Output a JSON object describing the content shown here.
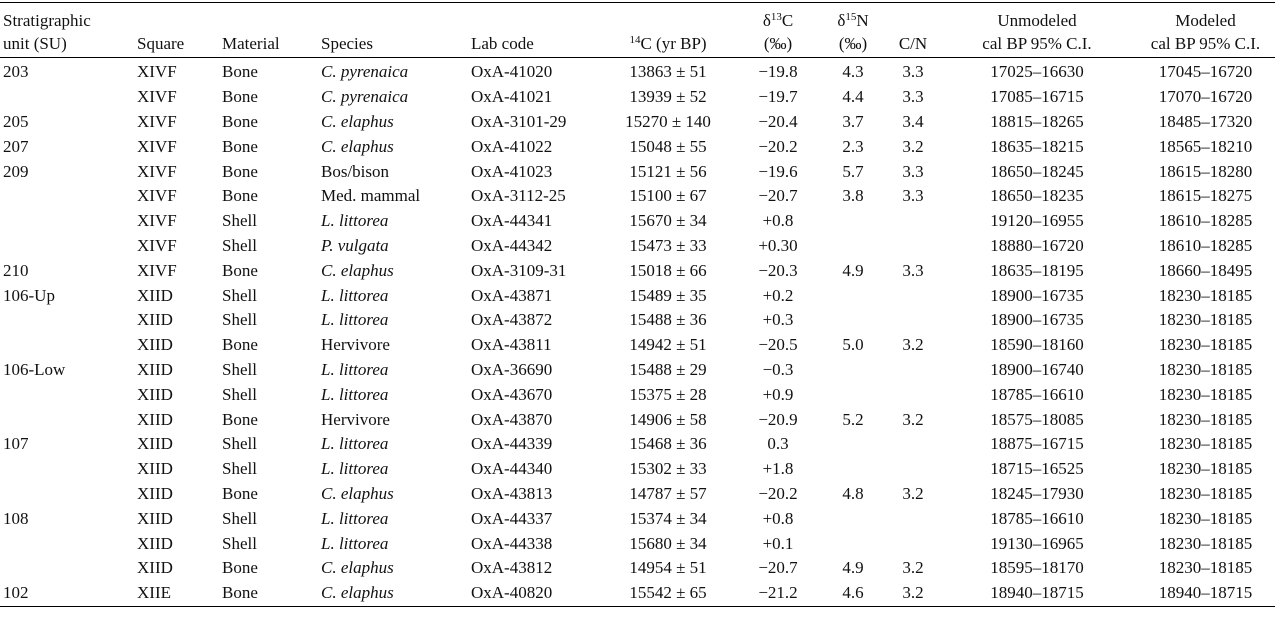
{
  "table": {
    "header": [
      [
        [
          "Stratigraphic"
        ],
        [
          "unit (SU)"
        ]
      ],
      [
        [
          "Square"
        ]
      ],
      [
        [
          "Material"
        ]
      ],
      [
        [
          "Species"
        ]
      ],
      [
        [
          "Lab code"
        ]
      ],
      [
        [
          {
            "sup": "14"
          },
          "C (yr BP)"
        ]
      ],
      [
        [
          "δ",
          {
            "sup": "13"
          },
          "C"
        ],
        [
          "(‰)"
        ]
      ],
      [
        [
          "δ",
          {
            "sup": "15"
          },
          "N"
        ],
        [
          "(‰)"
        ]
      ],
      [
        [
          "C/N"
        ]
      ],
      [
        [
          "Unmodeled"
        ],
        [
          "cal BP 95% C.I."
        ]
      ],
      [
        [
          "Modeled"
        ],
        [
          "cal BP 95% C.I."
        ]
      ]
    ],
    "rows": [
      [
        "203",
        "XIVF",
        "Bone",
        "C. pyrenaica",
        "OxA-41020",
        "13863 ± 51",
        "−19.8",
        "4.3",
        "3.3",
        "17025–16630",
        "17045–16720"
      ],
      [
        null,
        "XIVF",
        "Bone",
        "C. pyrenaica",
        "OxA-41021",
        "13939 ± 52",
        "−19.7",
        "4.4",
        "3.3",
        "17085–16715",
        "17070–16720"
      ],
      [
        "205",
        "XIVF",
        "Bone",
        "C. elaphus",
        "OxA-3101-29",
        "15270 ± 140",
        "−20.4",
        "3.7",
        "3.4",
        "18815–18265",
        "18485–17320"
      ],
      [
        "207",
        "XIVF",
        "Bone",
        "C. elaphus",
        "OxA-41022",
        "15048 ± 55",
        "−20.2",
        "2.3",
        "3.2",
        "18635–18215",
        "18565–18210"
      ],
      [
        "209",
        "XIVF",
        "Bone",
        "Bos/bison",
        "OxA-41023",
        "15121 ± 56",
        "−19.6",
        "5.7",
        "3.3",
        "18650–18245",
        "18615–18280"
      ],
      [
        null,
        "XIVF",
        "Bone",
        "Med. mammal",
        "OxA-3112-25",
        "15100 ± 67",
        "−20.7",
        "3.8",
        "3.3",
        "18650–18235",
        "18615–18275"
      ],
      [
        null,
        "XIVF",
        "Shell",
        "L. littorea",
        "OxA-44341",
        "15670 ± 34",
        "+0.8",
        null,
        null,
        "19120–16955",
        "18610–18285"
      ],
      [
        null,
        "XIVF",
        "Shell",
        "P. vulgata",
        "OxA-44342",
        "15473 ± 33",
        "+0.30",
        null,
        null,
        "18880–16720",
        "18610–18285"
      ],
      [
        "210",
        "XIVF",
        "Bone",
        "C. elaphus",
        "OxA-3109-31",
        "15018 ± 66",
        "−20.3",
        "4.9",
        "3.3",
        "18635–18195",
        "18660–18495"
      ],
      [
        "106-Up",
        "XIID",
        "Shell",
        "L. littorea",
        "OxA-43871",
        "15489 ± 35",
        "+0.2",
        null,
        null,
        "18900–16735",
        "18230–18185"
      ],
      [
        null,
        "XIID",
        "Shell",
        "L. littorea",
        "OxA-43872",
        "15488 ± 36",
        "+0.3",
        null,
        null,
        "18900–16735",
        "18230–18185"
      ],
      [
        null,
        "XIID",
        "Bone",
        "Hervivore",
        "OxA-43811",
        "14942 ± 51",
        "−20.5",
        "5.0",
        "3.2",
        "18590–18160",
        "18230–18185"
      ],
      [
        "106-Low",
        "XIID",
        "Shell",
        "L. littorea",
        "OxA-36690",
        "15488 ± 29",
        "−0.3",
        null,
        null,
        "18900–16740",
        "18230–18185"
      ],
      [
        null,
        "XIID",
        "Shell",
        "L. littorea",
        "OxA-43670",
        "15375 ± 28",
        "+0.9",
        null,
        null,
        "18785–16610",
        "18230–18185"
      ],
      [
        null,
        "XIID",
        "Bone",
        "Hervivore",
        "OxA-43870",
        "14906 ± 58",
        "−20.9",
        "5.2",
        "3.2",
        "18575–18085",
        "18230–18185"
      ],
      [
        "107",
        "XIID",
        "Shell",
        "L. littorea",
        "OxA-44339",
        "15468 ± 36",
        "0.3",
        null,
        null,
        "18875–16715",
        "18230–18185"
      ],
      [
        null,
        "XIID",
        "Shell",
        "L. littorea",
        "OxA-44340",
        "15302 ± 33",
        "+1.8",
        null,
        null,
        "18715–16525",
        "18230–18185"
      ],
      [
        null,
        "XIID",
        "Bone",
        "C. elaphus",
        "OxA-43813",
        "14787 ± 57",
        "−20.2",
        "4.8",
        "3.2",
        "18245–17930",
        "18230–18185"
      ],
      [
        "108",
        "XIID",
        "Shell",
        "L. littorea",
        "OxA-44337",
        "15374 ± 34",
        "+0.8",
        null,
        null,
        "18785–16610",
        "18230–18185"
      ],
      [
        null,
        "XIID",
        "Shell",
        "L. littorea",
        "OxA-44338",
        "15680 ± 34",
        "+0.1",
        null,
        null,
        "19130–16965",
        "18230–18185"
      ],
      [
        null,
        "XIID",
        "Bone",
        "C. elaphus",
        "OxA-43812",
        "14954 ± 51",
        "−20.7",
        "4.9",
        "3.2",
        "18595–18170",
        "18230–18185"
      ],
      [
        "102",
        "XIIE",
        "Bone",
        "C. elaphus",
        "OxA-40820",
        "15542 ± 65",
        "−21.2",
        "4.6",
        "3.2",
        "18940–18715",
        "18940–18715"
      ]
    ]
  }
}
